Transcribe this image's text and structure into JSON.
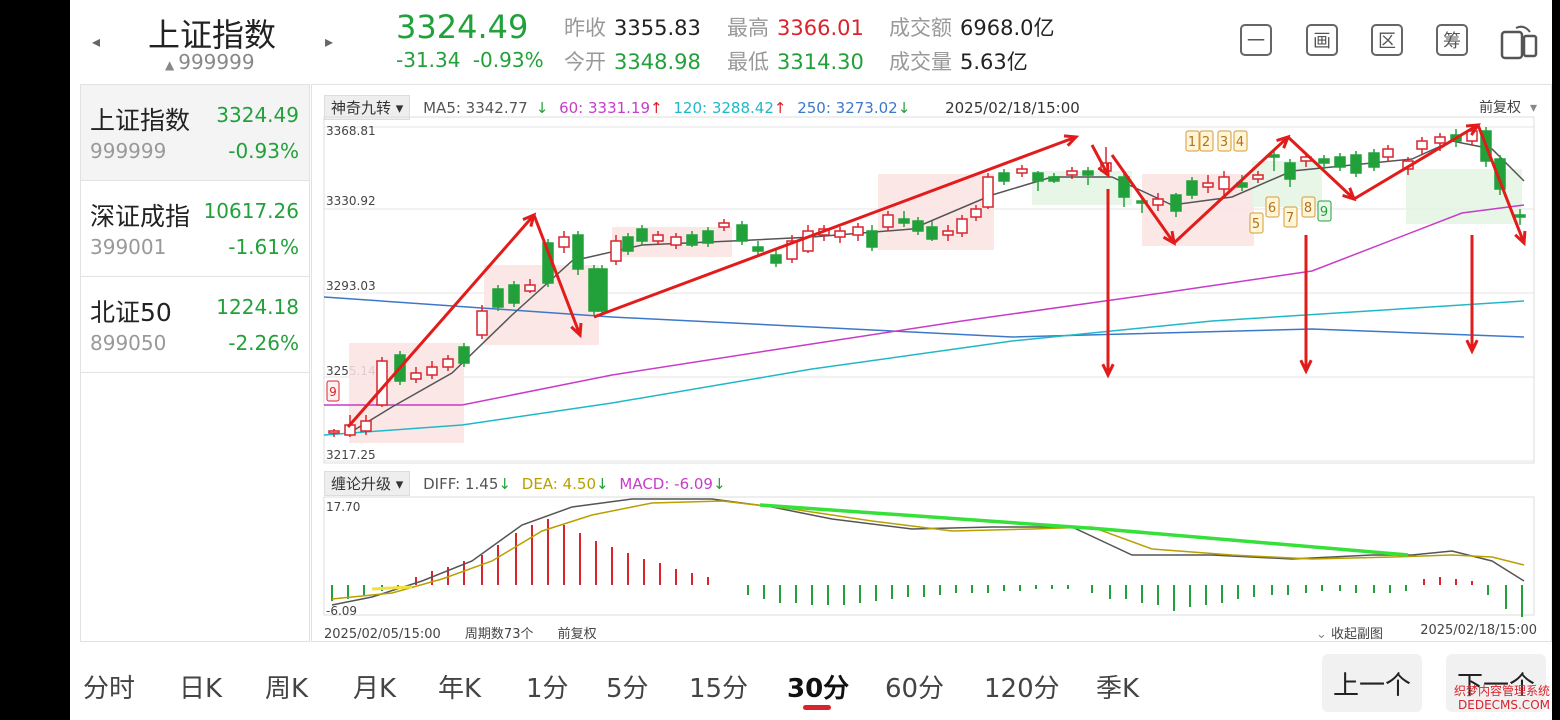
{
  "header": {
    "name": "上证指数",
    "code": "999999",
    "price": "3324.49",
    "change": "-31.34",
    "change_pct": "-0.93%",
    "stats": [
      {
        "k": "昨收",
        "v": "3355.83",
        "tone": "dark"
      },
      {
        "k": "最高",
        "v": "3366.01",
        "tone": "red"
      },
      {
        "k": "成交额",
        "v": "6968.0亿",
        "tone": "dark"
      },
      {
        "k": "今开",
        "v": "3348.98",
        "tone": "green"
      },
      {
        "k": "最低",
        "v": "3314.30",
        "tone": "green"
      },
      {
        "k": "成交量",
        "v": "5.63亿",
        "tone": "dark"
      }
    ],
    "tools": [
      "一",
      "画",
      "区",
      "筹"
    ]
  },
  "indices": [
    {
      "name": "上证指数",
      "code": "999999",
      "price": "3324.49",
      "pct": "-0.93%"
    },
    {
      "name": "深证成指",
      "code": "399001",
      "price": "10617.26",
      "pct": "-1.61%"
    },
    {
      "name": "北证50",
      "code": "899050",
      "price": "1224.18",
      "pct": "-2.26%"
    }
  ],
  "main_chart": {
    "indicator": "神奇九转",
    "ma5": "MA5: 3342.77",
    "ma60": "60: 3331.19",
    "ma120": "120: 3288.42",
    "ma250": "250: 3273.02",
    "datetime": "2025/02/18/15:00",
    "adjust": "前复权",
    "y_labels": [
      "3368.81",
      "3330.92",
      "3293.03",
      "3255.14",
      "3217.25"
    ],
    "nine_labels_top": [
      "1",
      "2",
      "3",
      "4"
    ],
    "nine_labels_bottom": [
      "5",
      "6",
      "7",
      "8",
      "9"
    ],
    "nine_label_left": "9"
  },
  "sub_chart": {
    "indicator": "缠论升级",
    "diff": "DIFF: 1.45",
    "dea": "DEA: 4.50",
    "macd": "MACD: -6.09",
    "y_top": "17.70",
    "y_bottom": "-6.09"
  },
  "footer": {
    "start": "2025/02/05/15:00",
    "period_count": "周期数73个",
    "adjust": "前复权",
    "collapse": "收起副图",
    "end": "2025/02/18/15:00"
  },
  "tabs": [
    "分时",
    "日K",
    "周K",
    "月K",
    "年K",
    "1分",
    "5分",
    "15分",
    "30分",
    "60分",
    "120分",
    "季K"
  ],
  "active_tab": "30分",
  "nav": {
    "prev": "上一个",
    "next": "下一个"
  },
  "watermark": [
    "织梦内容管理系统",
    "DEDECMS.COM"
  ],
  "colors": {
    "up": "#d9232d",
    "down": "#22a03a",
    "ma60": "#c83cc8",
    "ma120": "#20b8c8",
    "ma250": "#3c78c8",
    "ma5": "#555555"
  }
}
